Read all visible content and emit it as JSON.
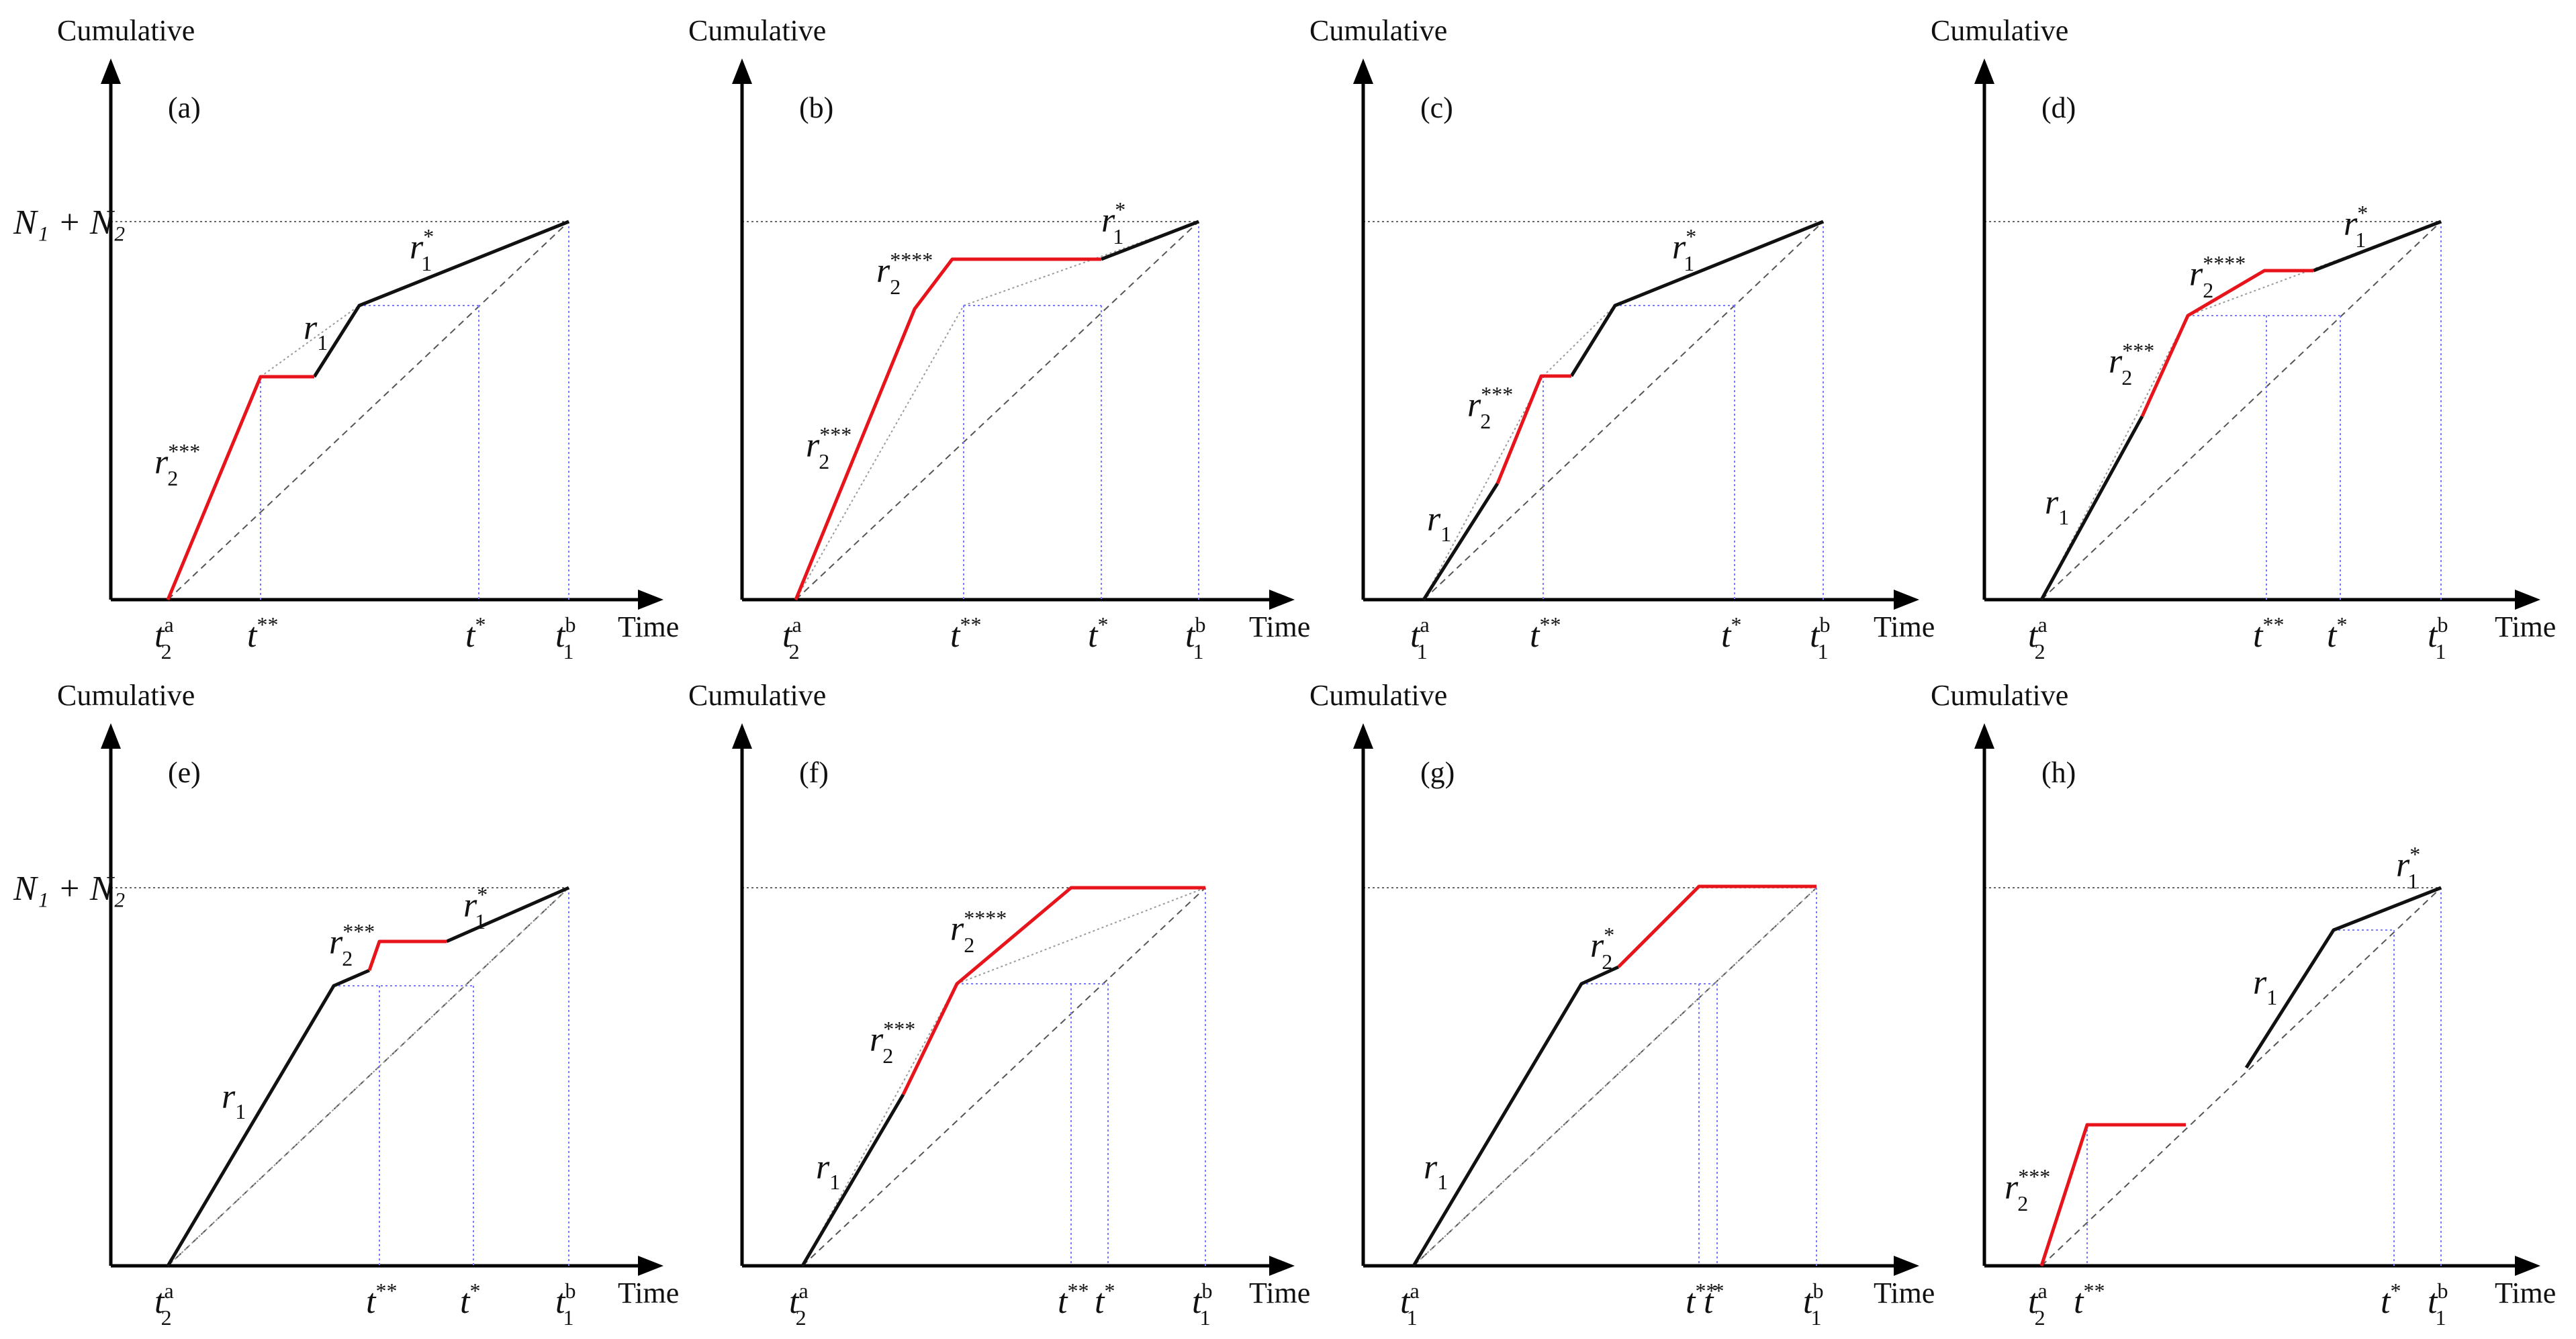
{
  "figure": {
    "axis_y_title": "Cumulative",
    "axis_x_title": "Time",
    "level_label": "N₁ + N₂"
  },
  "panels": [
    {
      "id": "a",
      "label": "(a)",
      "ticks": [
        {
          "key": "t2a",
          "base": "t",
          "sup": "a",
          "sub": "2"
        },
        {
          "key": "tss",
          "base": "t",
          "sup": "**",
          "sub": ""
        },
        {
          "key": "ts",
          "base": "t",
          "sup": "*",
          "sub": ""
        },
        {
          "key": "t1b",
          "base": "t",
          "sup": "b",
          "sub": "1"
        }
      ],
      "rates": [
        {
          "key": "r2_3star",
          "base": "r",
          "sup": "***",
          "sub": "2"
        },
        {
          "key": "r1",
          "base": "r",
          "sup": "",
          "sub": "1"
        },
        {
          "key": "r1_star",
          "base": "r",
          "sup": "*",
          "sub": "1"
        }
      ]
    },
    {
      "id": "b",
      "label": "(b)",
      "ticks": [
        {
          "key": "t2a",
          "base": "t",
          "sup": "a",
          "sub": "2"
        },
        {
          "key": "tss",
          "base": "t",
          "sup": "**",
          "sub": ""
        },
        {
          "key": "ts",
          "base": "t",
          "sup": "*",
          "sub": ""
        },
        {
          "key": "t1b",
          "base": "t",
          "sup": "b",
          "sub": "1"
        }
      ],
      "rates": [
        {
          "key": "r2_3star",
          "base": "r",
          "sup": "***",
          "sub": "2"
        },
        {
          "key": "r2_4star",
          "base": "r",
          "sup": "****",
          "sub": "2"
        },
        {
          "key": "r1_star",
          "base": "r",
          "sup": "*",
          "sub": "1"
        }
      ]
    },
    {
      "id": "c",
      "label": "(c)",
      "ticks": [
        {
          "key": "t1a",
          "base": "t",
          "sup": "a",
          "sub": "1"
        },
        {
          "key": "tss",
          "base": "t",
          "sup": "**",
          "sub": ""
        },
        {
          "key": "ts",
          "base": "t",
          "sup": "*",
          "sub": ""
        },
        {
          "key": "t1b",
          "base": "t",
          "sup": "b",
          "sub": "1"
        }
      ],
      "rates": [
        {
          "key": "r1",
          "base": "r",
          "sup": "",
          "sub": "1"
        },
        {
          "key": "r2_3star",
          "base": "r",
          "sup": "***",
          "sub": "2"
        },
        {
          "key": "r1_star",
          "base": "r",
          "sup": "*",
          "sub": "1"
        }
      ]
    },
    {
      "id": "d",
      "label": "(d)",
      "ticks": [
        {
          "key": "t2a",
          "base": "t",
          "sup": "a",
          "sub": "2"
        },
        {
          "key": "tss",
          "base": "t",
          "sup": "**",
          "sub": ""
        },
        {
          "key": "ts",
          "base": "t",
          "sup": "*",
          "sub": ""
        },
        {
          "key": "t1b",
          "base": "t",
          "sup": "b",
          "sub": "1"
        }
      ],
      "rates": [
        {
          "key": "r1",
          "base": "r",
          "sup": "",
          "sub": "1"
        },
        {
          "key": "r2_3star",
          "base": "r",
          "sup": "***",
          "sub": "2"
        },
        {
          "key": "r2_4star",
          "base": "r",
          "sup": "****",
          "sub": "2"
        },
        {
          "key": "r1_star",
          "base": "r",
          "sup": "*",
          "sub": "1"
        }
      ]
    },
    {
      "id": "e",
      "label": "(e)",
      "ticks": [
        {
          "key": "t2a",
          "base": "t",
          "sup": "a",
          "sub": "2"
        },
        {
          "key": "tss",
          "base": "t",
          "sup": "**",
          "sub": ""
        },
        {
          "key": "ts",
          "base": "t",
          "sup": "*",
          "sub": ""
        },
        {
          "key": "t1b",
          "base": "t",
          "sup": "b",
          "sub": "1"
        }
      ],
      "rates": [
        {
          "key": "r1",
          "base": "r",
          "sup": "",
          "sub": "1"
        },
        {
          "key": "r2_3star",
          "base": "r",
          "sup": "***",
          "sub": "2"
        },
        {
          "key": "r1_star",
          "base": "r",
          "sup": "*",
          "sub": "1"
        }
      ]
    },
    {
      "id": "f",
      "label": "(f)",
      "ticks": [
        {
          "key": "t2a",
          "base": "t",
          "sup": "a",
          "sub": "2"
        },
        {
          "key": "tss",
          "base": "t",
          "sup": "**",
          "sub": ""
        },
        {
          "key": "ts",
          "base": "t",
          "sup": "*",
          "sub": ""
        },
        {
          "key": "t1b",
          "base": "t",
          "sup": "b",
          "sub": "1"
        }
      ],
      "rates": [
        {
          "key": "r1",
          "base": "r",
          "sup": "",
          "sub": "1"
        },
        {
          "key": "r2_3star",
          "base": "r",
          "sup": "***",
          "sub": "2"
        },
        {
          "key": "r2_4star",
          "base": "r",
          "sup": "****",
          "sub": "2"
        }
      ]
    },
    {
      "id": "g",
      "label": "(g)",
      "ticks": [
        {
          "key": "t1a",
          "base": "t",
          "sup": "a",
          "sub": "1"
        },
        {
          "key": "tss",
          "base": "t",
          "sup": "**",
          "sub": ""
        },
        {
          "key": "ts",
          "base": "t",
          "sup": "*",
          "sub": ""
        },
        {
          "key": "t1b",
          "base": "t",
          "sup": "b",
          "sub": "1"
        }
      ],
      "rates": [
        {
          "key": "r1",
          "base": "r",
          "sup": "",
          "sub": "1"
        },
        {
          "key": "r2_star",
          "base": "r",
          "sup": "*",
          "sub": "2"
        }
      ]
    },
    {
      "id": "h",
      "label": "(h)",
      "ticks": [
        {
          "key": "t2a",
          "base": "t",
          "sup": "a",
          "sub": "2"
        },
        {
          "key": "tss",
          "base": "t",
          "sup": "**",
          "sub": ""
        },
        {
          "key": "ts",
          "base": "t",
          "sup": "*",
          "sub": ""
        },
        {
          "key": "t1b",
          "base": "t",
          "sup": "b",
          "sub": "1"
        }
      ],
      "rates": [
        {
          "key": "r2_3star",
          "base": "r",
          "sup": "***",
          "sub": "2"
        },
        {
          "key": "r1",
          "base": "r",
          "sup": "",
          "sub": "1"
        },
        {
          "key": "r1_star",
          "base": "r",
          "sup": "*",
          "sub": "1"
        }
      ]
    }
  ],
  "colors": {
    "axis": "#000000",
    "black_curve": "#111111",
    "red_curve": "#e8141c",
    "dashed_diagonal": "#555555",
    "dotted_guides": "#7b7bff",
    "level_line": "#333333",
    "grey_guides": "#9a9a9a"
  }
}
